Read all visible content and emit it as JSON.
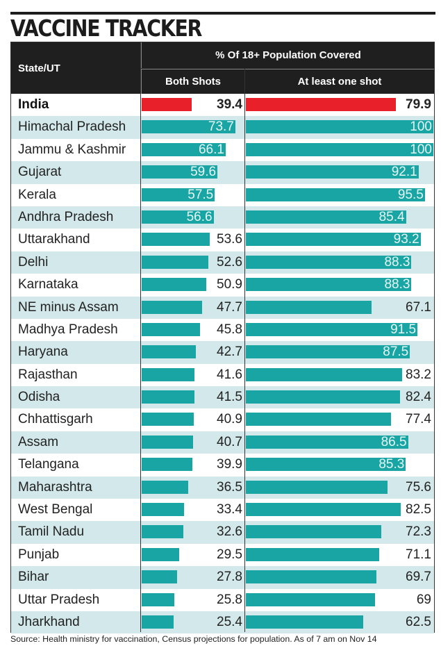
{
  "title": "VACCINE TRACKER",
  "header": {
    "state_col": "State/UT",
    "group": "% Of 18+ Population Covered",
    "both_shots": "Both Shots",
    "at_least_one": "At least one shot"
  },
  "source": "Source: Health ministry for vaccination, Census projections for population. As of 7 am on Nov 14",
  "colors": {
    "india_bar": "#e8202a",
    "state_bar": "#1aa5a5",
    "alt_row": "#d3e8ea",
    "header_bg": "#1f1f1f"
  },
  "chart_data": {
    "type": "bar",
    "title": "VACCINE TRACKER",
    "subtitle": "% Of 18+ Population Covered",
    "orientation": "horizontal",
    "categories": [
      "India",
      "Himachal Pradesh",
      "Jammu & Kashmir",
      "Gujarat",
      "Kerala",
      "Andhra Pradesh",
      "Uttarakhand",
      "Delhi",
      "Karnataka",
      "NE minus Assam",
      "Madhya Pradesh",
      "Haryana",
      "Rajasthan",
      "Odisha",
      "Chhattisgarh",
      "Assam",
      "Telangana",
      "Maharashtra",
      "West Bengal",
      "Tamil Nadu",
      "Punjab",
      "Bihar",
      "Uttar Pradesh",
      "Jharkhand"
    ],
    "series": [
      {
        "name": "Both Shots",
        "values": [
          39.4,
          73.7,
          66.1,
          59.6,
          57.5,
          56.6,
          53.6,
          52.6,
          50.9,
          47.7,
          45.8,
          42.7,
          41.6,
          41.5,
          40.9,
          40.7,
          39.9,
          36.5,
          33.4,
          32.6,
          29.5,
          27.8,
          25.8,
          25.4
        ]
      },
      {
        "name": "At least one shot",
        "values": [
          79.9,
          100,
          100,
          92.1,
          95.5,
          85.4,
          93.2,
          88.3,
          88.3,
          67.1,
          91.5,
          87.5,
          83.2,
          82.4,
          77.4,
          86.5,
          85.3,
          75.6,
          82.5,
          72.3,
          71.1,
          69.7,
          69,
          62.5
        ]
      }
    ],
    "value_labels": {
      "Both Shots": [
        "39.4",
        "73.7",
        "66.1",
        "59.6",
        "57.5",
        "56.6",
        "53.6",
        "52.6",
        "50.9",
        "47.7",
        "45.8",
        "42.7",
        "41.6",
        "41.5",
        "40.9",
        "40.7",
        "39.9",
        "36.5",
        "33.4",
        "32.6",
        "29.5",
        "27.8",
        "25.8",
        "25.4"
      ],
      "At least one shot": [
        "79.9",
        "100",
        "100",
        "92.1",
        "95.5",
        "85.4",
        "93.2",
        "88.3",
        "88.3",
        "67.1",
        "91.5",
        "87.5",
        "83.2",
        "82.4",
        "77.4",
        "86.5",
        "85.3",
        "75.6",
        "82.5",
        "72.3",
        "71.1",
        "69.7",
        "69",
        "62.5"
      ]
    },
    "highlight": "India",
    "xlabel": "",
    "ylabel": "State/UT",
    "xlim": [
      0,
      100
    ],
    "grid": false,
    "legend": "none"
  }
}
